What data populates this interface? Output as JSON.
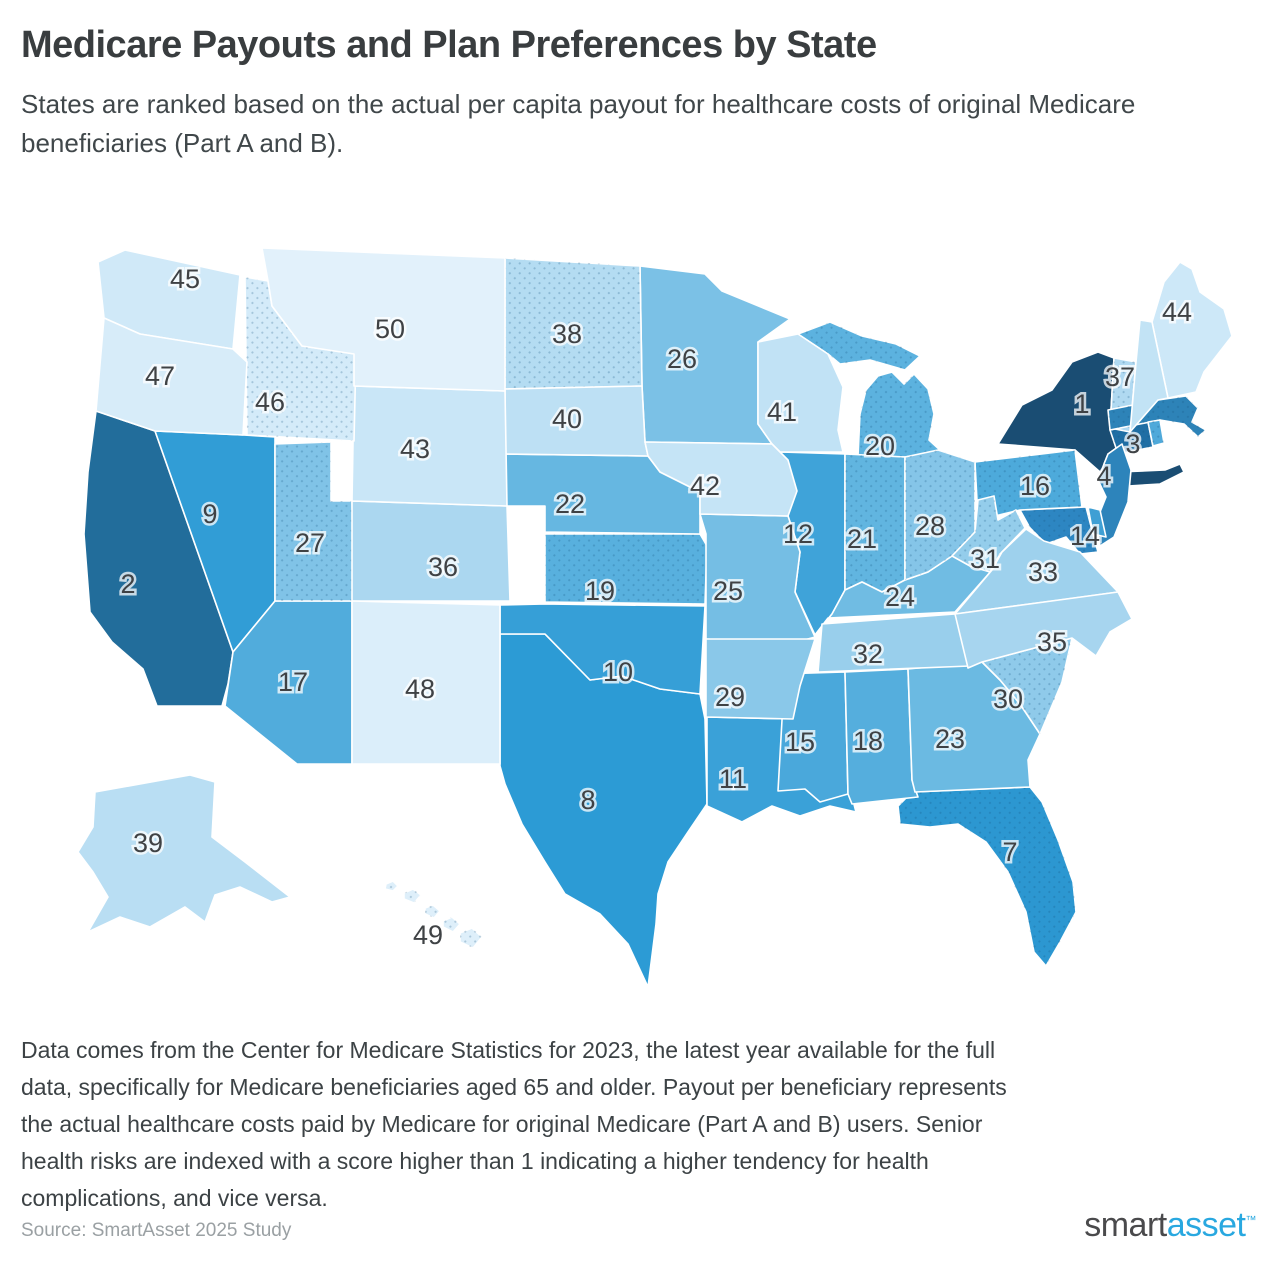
{
  "title": "Medicare Payouts and Plan Preferences by State",
  "subtitle": "States are ranked based on the actual per capita payout for healthcare costs of original Medicare beneficiaries (Part A and B).",
  "footnote": "Data comes from the Center for Medicare Statistics for 2023, the latest year available for the full data, specifically for Medicare beneficiaries aged 65 and older. Payout per beneficiary represents the actual healthcare costs paid by Medicare for original Medicare (Part A and B) users. Senior health risks are indexed with a score higher than 1 indicating a higher tendency for health complications, and vice versa.",
  "source": "Source: SmartAsset 2025 Study",
  "logo": {
    "smart": "smart",
    "asset": "asset",
    "tm": "™"
  },
  "colors": {
    "label": "#3f4245",
    "state_border": "#ffffff",
    "dot_overlay": "#15547f",
    "logo_gray": "#4a4a4c",
    "logo_blue": "#29a8e0",
    "ramp": [
      [
        1,
        "#1a4d73"
      ],
      [
        2,
        "#226d9b"
      ],
      [
        3,
        "#2173a6"
      ],
      [
        4,
        "#2d84bb"
      ],
      [
        6,
        "#2b93cd"
      ],
      [
        8,
        "#2c9bd5"
      ],
      [
        12,
        "#3fa3d9"
      ],
      [
        16,
        "#4daadb"
      ],
      [
        20,
        "#5cb2df"
      ],
      [
        24,
        "#70bce3"
      ],
      [
        28,
        "#85c5e8"
      ],
      [
        32,
        "#99cfec"
      ],
      [
        36,
        "#abd7f0"
      ],
      [
        40,
        "#bde0f4"
      ],
      [
        44,
        "#cde8f8"
      ],
      [
        47,
        "#d7ecf9"
      ],
      [
        50,
        "#e2f1fb"
      ]
    ]
  },
  "chart_data": {
    "type": "choropleth_map",
    "region": "United States",
    "value_meaning": "State rank of actual per capita Medicare payout (1 = highest payout, 50 = lowest)",
    "legend": "none shown; darker blue = higher payout rank, dotted texture on some states",
    "states": [
      {
        "abbr": "NY",
        "name": "New York",
        "rank": 1,
        "dotted": false
      },
      {
        "abbr": "CA",
        "name": "California",
        "rank": 2,
        "dotted": false
      },
      {
        "abbr": "CT",
        "name": "Connecticut",
        "rank": 3,
        "dotted": true,
        "fill": "#1f6ea4"
      },
      {
        "abbr": "NJ",
        "name": "New Jersey",
        "rank": 4,
        "dotted": false
      },
      {
        "abbr": "FL",
        "name": "Florida",
        "rank": 7,
        "dotted": true
      },
      {
        "abbr": "TX",
        "name": "Texas",
        "rank": 8,
        "dotted": false
      },
      {
        "abbr": "NV",
        "name": "Nevada",
        "rank": 9,
        "dotted": false
      },
      {
        "abbr": "OK",
        "name": "Oklahoma",
        "rank": 10,
        "dotted": false
      },
      {
        "abbr": "LA",
        "name": "Louisiana",
        "rank": 11,
        "dotted": false
      },
      {
        "abbr": "IL",
        "name": "Illinois",
        "rank": 12,
        "dotted": false
      },
      {
        "abbr": "MD",
        "name": "Maryland",
        "rank": 14,
        "dotted": true,
        "fill": "#2d86c2"
      },
      {
        "abbr": "MS",
        "name": "Mississippi",
        "rank": 15,
        "dotted": false
      },
      {
        "abbr": "PA",
        "name": "Pennsylvania",
        "rank": 16,
        "dotted": true
      },
      {
        "abbr": "AZ",
        "name": "Arizona",
        "rank": 17,
        "dotted": false
      },
      {
        "abbr": "AL",
        "name": "Alabama",
        "rank": 18,
        "dotted": false
      },
      {
        "abbr": "KS",
        "name": "Kansas",
        "rank": 19,
        "dotted": true
      },
      {
        "abbr": "MI",
        "name": "Michigan",
        "rank": 20,
        "dotted": true
      },
      {
        "abbr": "IN",
        "name": "Indiana",
        "rank": 21,
        "dotted": true
      },
      {
        "abbr": "NE",
        "name": "Nebraska",
        "rank": 22,
        "dotted": false
      },
      {
        "abbr": "GA",
        "name": "Georgia",
        "rank": 23,
        "dotted": false
      },
      {
        "abbr": "KY",
        "name": "Kentucky",
        "rank": 24,
        "dotted": false
      },
      {
        "abbr": "MO",
        "name": "Missouri",
        "rank": 25,
        "dotted": false
      },
      {
        "abbr": "MN",
        "name": "Minnesota",
        "rank": 26,
        "dotted": false
      },
      {
        "abbr": "UT",
        "name": "Utah",
        "rank": 27,
        "dotted": true
      },
      {
        "abbr": "OH",
        "name": "Ohio",
        "rank": 28,
        "dotted": true
      },
      {
        "abbr": "AR",
        "name": "Arkansas",
        "rank": 29,
        "dotted": false
      },
      {
        "abbr": "SC",
        "name": "South Carolina",
        "rank": 30,
        "dotted": true
      },
      {
        "abbr": "WV",
        "name": "West Virginia",
        "rank": 31,
        "dotted": true
      },
      {
        "abbr": "TN",
        "name": "Tennessee",
        "rank": 32,
        "dotted": false
      },
      {
        "abbr": "VA",
        "name": "Virginia",
        "rank": 33,
        "dotted": false
      },
      {
        "abbr": "NC",
        "name": "North Carolina",
        "rank": 35,
        "dotted": false
      },
      {
        "abbr": "CO",
        "name": "Colorado",
        "rank": 36,
        "dotted": false
      },
      {
        "abbr": "VT",
        "name": "Vermont",
        "rank": 37,
        "dotted": true
      },
      {
        "abbr": "ND",
        "name": "North Dakota",
        "rank": 38,
        "dotted": true
      },
      {
        "abbr": "AK",
        "name": "Alaska",
        "rank": 39,
        "dotted": false
      },
      {
        "abbr": "SD",
        "name": "South Dakota",
        "rank": 40,
        "dotted": false
      },
      {
        "abbr": "WI",
        "name": "Wisconsin",
        "rank": 41,
        "dotted": false
      },
      {
        "abbr": "IA",
        "name": "Iowa",
        "rank": 42,
        "dotted": false
      },
      {
        "abbr": "WY",
        "name": "Wyoming",
        "rank": 43,
        "dotted": false
      },
      {
        "abbr": "ME",
        "name": "Maine",
        "rank": 44,
        "dotted": false
      },
      {
        "abbr": "WA",
        "name": "Washington",
        "rank": 45,
        "dotted": false
      },
      {
        "abbr": "ID",
        "name": "Idaho",
        "rank": 46,
        "dotted": true
      },
      {
        "abbr": "OR",
        "name": "Oregon",
        "rank": 47,
        "dotted": false
      },
      {
        "abbr": "NM",
        "name": "New Mexico",
        "rank": 48,
        "dotted": false
      },
      {
        "abbr": "HI",
        "name": "Hawaii",
        "rank": 49,
        "dotted": true
      },
      {
        "abbr": "MT",
        "name": "Montana",
        "rank": 50,
        "dotted": false
      },
      {
        "abbr": "MA",
        "name": "Massachusetts",
        "rank": null,
        "dotted": true,
        "fill": "#2d83b8"
      },
      {
        "abbr": "RI",
        "name": "Rhode Island",
        "rank": null,
        "dotted": true,
        "fill": "#4fa9da"
      },
      {
        "abbr": "NH",
        "name": "New Hampshire",
        "rank": null,
        "dotted": false,
        "fill": "#c2e3f5"
      },
      {
        "abbr": "DE",
        "name": "Delaware",
        "rank": null,
        "dotted": false,
        "fill": "#3f9fd4"
      }
    ]
  }
}
